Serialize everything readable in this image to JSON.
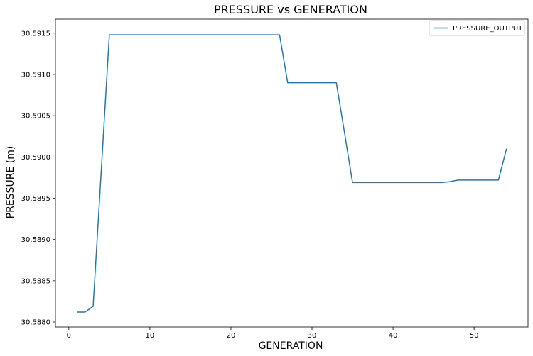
{
  "chart_data": {
    "type": "line",
    "title": "PRESSURE vs GENERATION",
    "xlabel": "GENERATION",
    "ylabel": "PRESSURE (m)",
    "xlim": [
      -1.65,
      56.65
    ],
    "ylim": [
      30.58794,
      30.59167
    ],
    "xticks": [
      0,
      10,
      20,
      30,
      40,
      50
    ],
    "yticks": [
      30.588,
      30.5885,
      30.589,
      30.5895,
      30.59,
      30.5905,
      30.591,
      30.5915
    ],
    "ytick_labels": [
      "30.5880",
      "30.5885",
      "30.5890",
      "30.5895",
      "30.5900",
      "30.5905",
      "30.5910",
      "30.5915"
    ],
    "grid": false,
    "legend_position": "top-right",
    "series": [
      {
        "name": "PRESSURE_OUTPUT",
        "color": "#1f77b4",
        "x": [
          1,
          2,
          3,
          4,
          5,
          6,
          7,
          8,
          9,
          10,
          11,
          12,
          13,
          14,
          15,
          16,
          17,
          18,
          19,
          20,
          21,
          22,
          23,
          24,
          25,
          26,
          27,
          28,
          29,
          30,
          31,
          32,
          33,
          34,
          35,
          36,
          37,
          38,
          39,
          40,
          41,
          42,
          43,
          44,
          45,
          46,
          47,
          48,
          49,
          50,
          51,
          52,
          53,
          54
        ],
        "y": [
          30.58812,
          30.58812,
          30.58819,
          30.58983,
          30.59148,
          30.59148,
          30.59148,
          30.59148,
          30.59148,
          30.59148,
          30.59148,
          30.59148,
          30.59148,
          30.59148,
          30.59148,
          30.59148,
          30.59148,
          30.59148,
          30.59148,
          30.59148,
          30.59148,
          30.59148,
          30.59148,
          30.59148,
          30.59148,
          30.59148,
          30.5909,
          30.5909,
          30.5909,
          30.5909,
          30.5909,
          30.5909,
          30.5909,
          30.5903,
          30.58969,
          30.58969,
          30.58969,
          30.58969,
          30.58969,
          30.58969,
          30.58969,
          30.58969,
          30.58969,
          30.58969,
          30.58969,
          30.58969,
          30.5897,
          30.58972,
          30.58972,
          30.58972,
          30.58972,
          30.58972,
          30.58972,
          30.5901
        ]
      }
    ]
  }
}
